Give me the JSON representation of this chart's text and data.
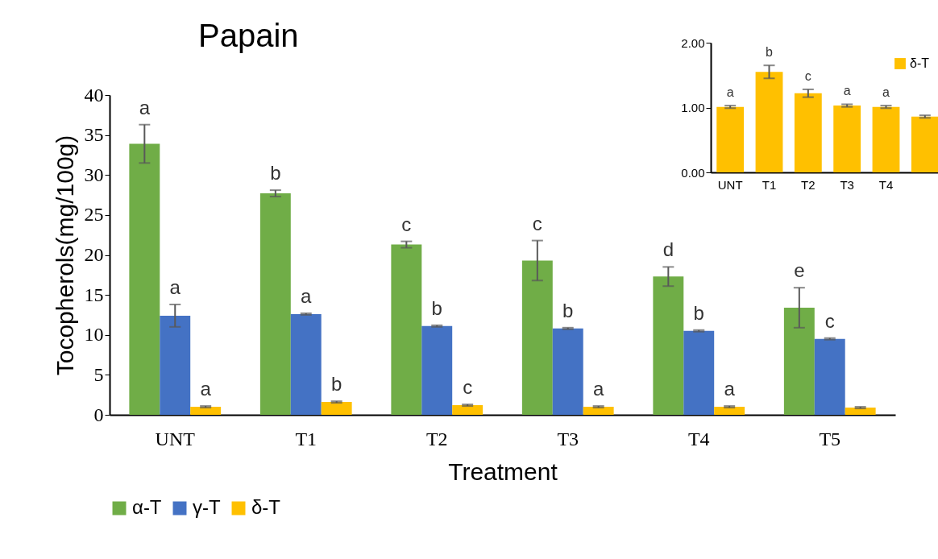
{
  "chart_data": [
    {
      "type": "bar",
      "title": "Papain",
      "xlabel": "Treatment",
      "ylabel": "Tocopherols(mg/100g)",
      "categories": [
        "UNT",
        "T1",
        "T2",
        "T3",
        "T4",
        "T5"
      ],
      "ylim": [
        0,
        40
      ],
      "yticks": [
        0,
        5,
        10,
        15,
        20,
        25,
        30,
        35,
        40
      ],
      "legend": "bottom",
      "series": [
        {
          "name": "α-T",
          "color": "#70ad47",
          "values": [
            33.9,
            27.7,
            21.3,
            19.3,
            17.3,
            13.4
          ],
          "errors": [
            2.4,
            0.4,
            0.4,
            2.5,
            1.2,
            2.5
          ],
          "value_labels": [
            "a",
            "b",
            "c",
            "c",
            "d",
            "e"
          ]
        },
        {
          "name": "γ-T",
          "color": "#4472c4",
          "values": [
            12.4,
            12.6,
            11.1,
            10.8,
            10.5,
            9.5
          ],
          "errors": [
            1.4,
            0.1,
            0.1,
            0.1,
            0.1,
            0.1
          ],
          "value_labels": [
            "a",
            "a",
            "b",
            "b",
            "b",
            "c"
          ]
        },
        {
          "name": "δ-T",
          "color": "#ffc000",
          "values": [
            1.0,
            1.6,
            1.2,
            1.0,
            1.0,
            0.9
          ],
          "errors": [
            0.1,
            0.1,
            0.1,
            0.1,
            0.1,
            0.1
          ],
          "value_labels": [
            "a",
            "b",
            "c",
            "a",
            "a",
            null
          ]
        }
      ]
    },
    {
      "type": "bar",
      "categories": [
        "UNT",
        "T1",
        "T2",
        "T3",
        "T4",
        null
      ],
      "ylim": [
        0,
        2
      ],
      "yticks": [
        {
          "value": 0,
          "label": "0.00"
        },
        {
          "value": 1,
          "label": "1.00"
        },
        {
          "value": 2,
          "label": "2.00"
        }
      ],
      "legend": "top right",
      "series": [
        {
          "name": "δ-T",
          "color": "#ffc000",
          "values": [
            1.01,
            1.55,
            1.22,
            1.03,
            1.01,
            0.86
          ],
          "errors": [
            0.02,
            0.1,
            0.06,
            0.02,
            0.02,
            0.02
          ],
          "value_labels": [
            "a",
            "b",
            "c",
            "a",
            "a",
            null
          ]
        }
      ]
    }
  ]
}
